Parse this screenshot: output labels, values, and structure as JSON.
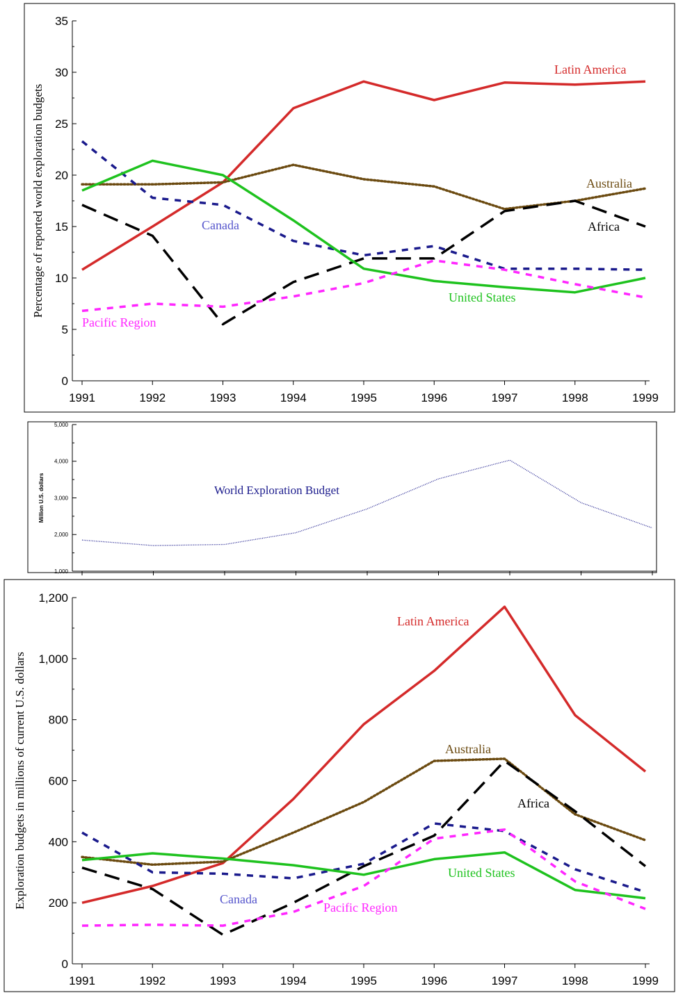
{
  "chart_data": [
    {
      "type": "line",
      "title": "",
      "xlabel": "",
      "ylabel": "Percentage of reported world exploration budgets",
      "x": [
        "1991",
        "1992",
        "1993",
        "1994",
        "1995",
        "1996",
        "1997",
        "1998",
        "1999"
      ],
      "ylim": [
        0,
        35
      ],
      "yticks": [
        "0",
        "5",
        "10",
        "15",
        "20",
        "25",
        "30",
        "35"
      ],
      "grid": false,
      "series": [
        {
          "name": "Latin America",
          "color": "#d42a2a",
          "style": "solid",
          "values": [
            10.8,
            15.0,
            19.3,
            26.5,
            29.1,
            27.3,
            29.0,
            28.8,
            29.1
          ]
        },
        {
          "name": "Australia",
          "color": "#6b4a10",
          "style": "dotted",
          "values": [
            19.1,
            19.1,
            19.3,
            21.0,
            19.6,
            18.9,
            16.7,
            17.5,
            18.7
          ]
        },
        {
          "name": "Canada",
          "color": "#1a1a8c",
          "style": "dash",
          "values": [
            23.3,
            17.8,
            17.1,
            13.6,
            12.2,
            13.1,
            10.9,
            10.9,
            10.8
          ]
        },
        {
          "name": "Africa",
          "color": "#000000",
          "style": "longdash",
          "values": [
            17.1,
            14.1,
            5.5,
            9.6,
            11.9,
            11.9,
            16.5,
            17.5,
            15.0
          ]
        },
        {
          "name": "United States",
          "color": "#1ec21e",
          "style": "solid",
          "values": [
            18.5,
            21.4,
            20.0,
            15.6,
            10.9,
            9.7,
            9.1,
            8.6,
            10.0
          ]
        },
        {
          "name": "Pacific Region",
          "color": "#ff26ff",
          "style": "dash",
          "values": [
            6.8,
            7.5,
            7.2,
            8.2,
            9.5,
            11.7,
            10.8,
            9.4,
            8.1
          ]
        }
      ],
      "annotations": [
        {
          "text": "Latin America",
          "color": "#d42a2a"
        },
        {
          "text": "Australia",
          "color": "#6b4a10"
        },
        {
          "text": "Canada",
          "color": "#5555cc"
        },
        {
          "text": "Africa",
          "color": "#000000"
        },
        {
          "text": "United States",
          "color": "#1ec21e"
        },
        {
          "text": "Pacific Region",
          "color": "#ff26ff"
        }
      ]
    },
    {
      "type": "line",
      "title": "",
      "xlabel": "",
      "ylabel": "Million U.S. dollars",
      "x": [
        "1991",
        "1992",
        "1993",
        "1994",
        "1995",
        "1996",
        "1997",
        "1998",
        "1999"
      ],
      "ylim": [
        1000,
        5000
      ],
      "yticks": [
        "1,000",
        "2,000",
        "3,000",
        "4,000",
        "5,000"
      ],
      "grid": false,
      "series": [
        {
          "name": "World Exploration Budget",
          "color": "#1a1a8c",
          "style": "dotted",
          "values": [
            1850,
            1700,
            1730,
            2050,
            2700,
            3520,
            4030,
            2870,
            2180
          ]
        }
      ],
      "annotations": [
        {
          "text": "World Exploration Budget",
          "color": "#1a1a8c"
        }
      ]
    },
    {
      "type": "line",
      "title": "",
      "xlabel": "",
      "ylabel": "Exploration budgets in millions of current U.S. dollars",
      "x": [
        "1991",
        "1992",
        "1993",
        "1994",
        "1995",
        "1996",
        "1997",
        "1998",
        "1999"
      ],
      "ylim": [
        0,
        1200
      ],
      "yticks": [
        "0",
        "200",
        "400",
        "600",
        "800",
        "1,000",
        "1,200"
      ],
      "grid": false,
      "series": [
        {
          "name": "Latin America",
          "color": "#d42a2a",
          "style": "solid",
          "values": [
            200,
            255,
            330,
            540,
            785,
            960,
            1170,
            815,
            630
          ]
        },
        {
          "name": "Australia",
          "color": "#6b4a10",
          "style": "dotted",
          "values": [
            350,
            325,
            335,
            430,
            530,
            665,
            672,
            490,
            405
          ]
        },
        {
          "name": "Canada",
          "color": "#1a1a8c",
          "style": "dash",
          "values": [
            430,
            300,
            295,
            280,
            328,
            460,
            435,
            310,
            235
          ]
        },
        {
          "name": "Africa",
          "color": "#000000",
          "style": "longdash",
          "values": [
            315,
            245,
            95,
            200,
            320,
            420,
            665,
            500,
            320
          ]
        },
        {
          "name": "United States",
          "color": "#1ec21e",
          "style": "solid",
          "values": [
            340,
            362,
            345,
            323,
            292,
            343,
            365,
            242,
            215
          ]
        },
        {
          "name": "Pacific Region",
          "color": "#ff26ff",
          "style": "dash",
          "values": [
            125,
            128,
            125,
            170,
            255,
            410,
            440,
            270,
            180
          ]
        }
      ],
      "annotations": [
        {
          "text": "Latin America",
          "color": "#d42a2a"
        },
        {
          "text": "Australia",
          "color": "#6b4a10"
        },
        {
          "text": "Africa",
          "color": "#000000"
        },
        {
          "text": "United States",
          "color": "#1ec21e"
        },
        {
          "text": "Canada",
          "color": "#5555cc"
        },
        {
          "text": "Pacific Region",
          "color": "#ff26ff"
        }
      ]
    }
  ]
}
